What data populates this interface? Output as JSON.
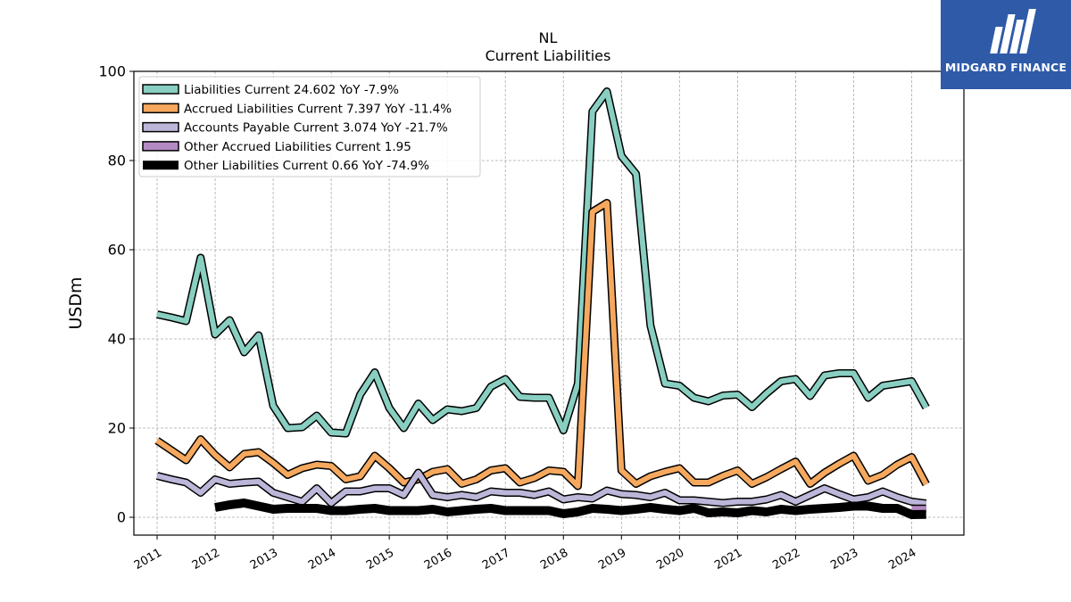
{
  "chart_data": {
    "type": "line",
    "title": "NL",
    "subtitle": "Current  Liabilities",
    "ylabel": "USDm",
    "xlabel": "",
    "ylim": [
      -4,
      100
    ],
    "xlim": [
      2010.6,
      2024.9
    ],
    "yticks": [
      0,
      20,
      40,
      60,
      80,
      100
    ],
    "xticks": [
      2011,
      2012,
      2013,
      2014,
      2015,
      2016,
      2017,
      2018,
      2019,
      2020,
      2021,
      2022,
      2023,
      2024
    ],
    "grid": true,
    "legend_position": "top-left",
    "series": [
      {
        "name": "Liabilities Current  24.602 YoY -7.9%",
        "color": "#88cfc1",
        "width": 6,
        "x": [
          2011.0,
          2011.25,
          2011.5,
          2011.75,
          2012.0,
          2012.25,
          2012.5,
          2012.75,
          2013.0,
          2013.25,
          2013.5,
          2013.75,
          2014.0,
          2014.25,
          2014.5,
          2014.75,
          2015.0,
          2015.25,
          2015.5,
          2015.75,
          2016.0,
          2016.25,
          2016.5,
          2016.75,
          2017.0,
          2017.25,
          2017.5,
          2017.75,
          2018.0,
          2018.25,
          2018.5,
          2018.75,
          2019.0,
          2019.25,
          2019.5,
          2019.75,
          2020.0,
          2020.25,
          2020.5,
          2020.75,
          2021.0,
          2021.25,
          2021.5,
          2021.75,
          2022.0,
          2022.25,
          2022.5,
          2022.75,
          2023.0,
          2023.25,
          2023.5,
          2023.75,
          2024.0,
          2024.25
        ],
        "y": [
          45.5,
          44.8,
          44.0,
          58.2,
          41.0,
          44.2,
          37.0,
          40.8,
          25.0,
          20.0,
          20.2,
          22.8,
          19.0,
          18.8,
          27.5,
          32.5,
          24.5,
          20.0,
          25.5,
          21.8,
          24.2,
          23.8,
          24.5,
          29.3,
          31.0,
          27.0,
          26.8,
          26.8,
          19.5,
          30.0,
          91.0,
          95.5,
          81.0,
          77.0,
          43.0,
          30.0,
          29.5,
          26.8,
          26.0,
          27.3,
          27.5,
          24.7,
          27.8,
          30.5,
          31.0,
          27.2,
          31.8,
          32.3,
          32.3,
          26.8,
          29.5,
          30.0,
          30.5,
          24.6
        ]
      },
      {
        "name": "Accrued Liabilities Current  7.397 YoY -11.4%",
        "color": "#f5a85e",
        "width": 6,
        "x": [
          2011.0,
          2011.25,
          2011.5,
          2011.75,
          2012.0,
          2012.25,
          2012.5,
          2012.75,
          2013.0,
          2013.25,
          2013.5,
          2013.75,
          2014.0,
          2014.25,
          2014.5,
          2014.75,
          2015.0,
          2015.25,
          2015.5,
          2015.75,
          2016.0,
          2016.25,
          2016.5,
          2016.75,
          2017.0,
          2017.25,
          2017.5,
          2017.75,
          2018.0,
          2018.25,
          2018.5,
          2018.75,
          2019.0,
          2019.25,
          2019.5,
          2019.75,
          2020.0,
          2020.25,
          2020.5,
          2020.75,
          2021.0,
          2021.25,
          2021.5,
          2021.75,
          2022.0,
          2022.25,
          2022.5,
          2022.75,
          2023.0,
          2023.25,
          2023.5,
          2023.75,
          2024.0,
          2024.25
        ],
        "y": [
          17.2,
          15.0,
          12.8,
          17.5,
          14.0,
          11.2,
          14.2,
          14.6,
          12.2,
          9.5,
          11.0,
          11.8,
          11.5,
          8.5,
          9.2,
          13.8,
          11.0,
          7.8,
          8.5,
          10.2,
          10.8,
          7.5,
          8.5,
          10.5,
          11.0,
          7.8,
          8.8,
          10.5,
          10.2,
          7.0,
          68.5,
          70.5,
          10.5,
          7.5,
          9.2,
          10.2,
          11.0,
          7.8,
          7.8,
          9.3,
          10.5,
          7.5,
          9.0,
          10.8,
          12.5,
          7.5,
          10.0,
          12.0,
          13.8,
          8.2,
          9.5,
          11.8,
          13.5,
          7.4
        ]
      },
      {
        "name": "Accounts Payable Current  3.074 YoY -21.7%",
        "color": "#bcb6d9",
        "width": 6,
        "x": [
          2011.0,
          2011.25,
          2011.5,
          2011.75,
          2012.0,
          2012.25,
          2012.5,
          2012.75,
          2013.0,
          2013.25,
          2013.5,
          2013.75,
          2014.0,
          2014.25,
          2014.5,
          2014.75,
          2015.0,
          2015.25,
          2015.5,
          2015.75,
          2016.0,
          2016.25,
          2016.5,
          2016.75,
          2017.0,
          2017.25,
          2017.5,
          2017.75,
          2018.0,
          2018.25,
          2018.5,
          2018.75,
          2019.0,
          2019.25,
          2019.5,
          2019.75,
          2020.0,
          2020.25,
          2020.5,
          2020.75,
          2021.0,
          2021.25,
          2021.5,
          2021.75,
          2022.0,
          2022.25,
          2022.5,
          2022.75,
          2023.0,
          2023.25,
          2023.5,
          2023.75,
          2024.0,
          2024.25
        ],
        "y": [
          9.3,
          8.5,
          7.8,
          5.5,
          8.5,
          7.5,
          7.8,
          8.0,
          5.5,
          4.5,
          3.5,
          6.5,
          3.2,
          5.8,
          5.8,
          6.5,
          6.5,
          5.0,
          10.0,
          5.0,
          4.5,
          5.0,
          4.5,
          5.8,
          5.5,
          5.5,
          5.0,
          5.8,
          4.0,
          4.5,
          4.2,
          6.0,
          5.2,
          5.0,
          4.5,
          5.5,
          3.8,
          3.8,
          3.5,
          3.2,
          3.5,
          3.5,
          4.0,
          5.0,
          3.5,
          5.0,
          6.5,
          5.2,
          4.0,
          4.5,
          5.8,
          4.5,
          3.5,
          3.1
        ]
      },
      {
        "name": "Other Accrued Liabilities Current  1.95",
        "color": "#b48ac2",
        "width": 6,
        "x": [
          2024.0,
          2024.25
        ],
        "y": [
          1.95,
          1.95
        ]
      },
      {
        "name": "Other Liabilities Current  0.66 YoY -74.9%",
        "color": "#000000",
        "width": 10,
        "x": [
          2012.0,
          2012.25,
          2012.5,
          2012.75,
          2013.0,
          2013.25,
          2013.5,
          2013.75,
          2014.0,
          2014.25,
          2014.5,
          2014.75,
          2015.0,
          2015.25,
          2015.5,
          2015.75,
          2016.0,
          2016.25,
          2016.5,
          2016.75,
          2017.0,
          2017.25,
          2017.5,
          2017.75,
          2018.0,
          2018.25,
          2018.5,
          2018.75,
          2019.0,
          2019.25,
          2019.5,
          2019.75,
          2020.0,
          2020.25,
          2020.5,
          2020.75,
          2021.0,
          2021.25,
          2021.5,
          2021.75,
          2022.0,
          2022.25,
          2022.5,
          2022.75,
          2023.0,
          2023.25,
          2023.5,
          2023.75,
          2024.0,
          2024.25
        ],
        "y": [
          2.2,
          2.8,
          3.2,
          2.5,
          1.8,
          2.0,
          2.0,
          2.0,
          1.5,
          1.5,
          1.8,
          2.0,
          1.5,
          1.5,
          1.5,
          1.8,
          1.2,
          1.5,
          1.8,
          2.0,
          1.5,
          1.5,
          1.5,
          1.5,
          0.8,
          1.2,
          2.0,
          1.8,
          1.5,
          1.8,
          2.2,
          1.8,
          1.5,
          2.0,
          1.0,
          1.2,
          1.0,
          1.5,
          1.2,
          1.8,
          1.5,
          1.8,
          2.0,
          2.2,
          2.5,
          2.5,
          2.0,
          2.0,
          0.6,
          0.66
        ]
      }
    ]
  },
  "logo": {
    "text": "MIDGARD FINANCE",
    "bg": "#2f5aa8"
  }
}
